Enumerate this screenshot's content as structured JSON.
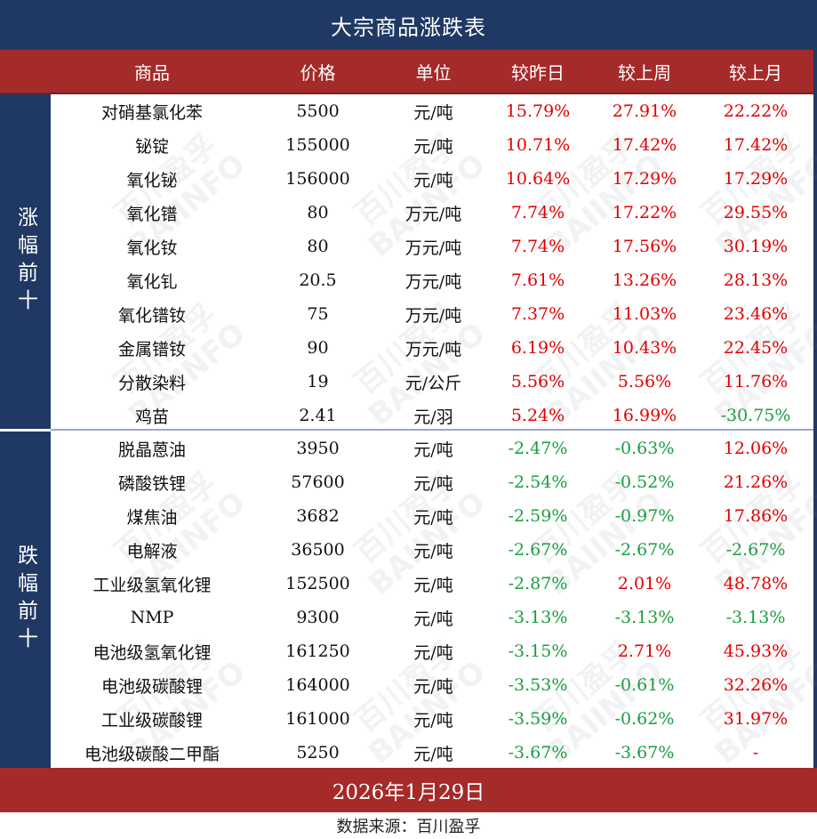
{
  "title": "大宗商品涨跌表",
  "headers": [
    "商品",
    "价格",
    "单位",
    "较昨日",
    "较上周",
    "较上月"
  ],
  "sections": [
    {
      "label": "涨幅前十",
      "rows": [
        {
          "name": "对硝基氯化苯",
          "price": "5500",
          "unit": "元/吨",
          "day": "15.79%",
          "week": "27.91%",
          "month": "22.22%",
          "day_dir": "up",
          "week_dir": "up",
          "month_dir": "up"
        },
        {
          "name": "铋锭",
          "price": "155000",
          "unit": "元/吨",
          "day": "10.71%",
          "week": "17.42%",
          "month": "17.42%",
          "day_dir": "up",
          "week_dir": "up",
          "month_dir": "up"
        },
        {
          "name": "氧化铋",
          "price": "156000",
          "unit": "元/吨",
          "day": "10.64%",
          "week": "17.29%",
          "month": "17.29%",
          "day_dir": "up",
          "week_dir": "up",
          "month_dir": "up"
        },
        {
          "name": "氧化镨",
          "price": "80",
          "unit": "万元/吨",
          "day": "7.74%",
          "week": "17.22%",
          "month": "29.55%",
          "day_dir": "up",
          "week_dir": "up",
          "month_dir": "up"
        },
        {
          "name": "氧化钕",
          "price": "80",
          "unit": "万元/吨",
          "day": "7.74%",
          "week": "17.56%",
          "month": "30.19%",
          "day_dir": "up",
          "week_dir": "up",
          "month_dir": "up"
        },
        {
          "name": "氧化钆",
          "price": "20.5",
          "unit": "万元/吨",
          "day": "7.61%",
          "week": "13.26%",
          "month": "28.13%",
          "day_dir": "up",
          "week_dir": "up",
          "month_dir": "up"
        },
        {
          "name": "氧化镨钕",
          "price": "75",
          "unit": "万元/吨",
          "day": "7.37%",
          "week": "11.03%",
          "month": "23.46%",
          "day_dir": "up",
          "week_dir": "up",
          "month_dir": "up"
        },
        {
          "name": "金属镨钕",
          "price": "90",
          "unit": "万元/吨",
          "day": "6.19%",
          "week": "10.43%",
          "month": "22.45%",
          "day_dir": "up",
          "week_dir": "up",
          "month_dir": "up"
        },
        {
          "name": "分散染料",
          "price": "19",
          "unit": "元/公斤",
          "day": "5.56%",
          "week": "5.56%",
          "month": "11.76%",
          "day_dir": "up",
          "week_dir": "up",
          "month_dir": "up"
        },
        {
          "name": "鸡苗",
          "price": "2.41",
          "unit": "元/羽",
          "day": "5.24%",
          "week": "16.99%",
          "month": "-30.75%",
          "day_dir": "up",
          "week_dir": "up",
          "month_dir": "down"
        }
      ]
    },
    {
      "label": "跌幅前十",
      "rows": [
        {
          "name": "脱晶蒽油",
          "price": "3950",
          "unit": "元/吨",
          "day": "-2.47%",
          "week": "-0.63%",
          "month": "12.06%",
          "day_dir": "down",
          "week_dir": "down",
          "month_dir": "up"
        },
        {
          "name": "磷酸铁锂",
          "price": "57600",
          "unit": "元/吨",
          "day": "-2.54%",
          "week": "-0.52%",
          "month": "21.26%",
          "day_dir": "down",
          "week_dir": "down",
          "month_dir": "up"
        },
        {
          "name": "煤焦油",
          "price": "3682",
          "unit": "元/吨",
          "day": "-2.59%",
          "week": "-0.97%",
          "month": "17.86%",
          "day_dir": "down",
          "week_dir": "down",
          "month_dir": "up"
        },
        {
          "name": "电解液",
          "price": "36500",
          "unit": "元/吨",
          "day": "-2.67%",
          "week": "-2.67%",
          "month": "-2.67%",
          "day_dir": "down",
          "week_dir": "down",
          "month_dir": "down"
        },
        {
          "name": "工业级氢氧化锂",
          "price": "152500",
          "unit": "元/吨",
          "day": "-2.87%",
          "week": "2.01%",
          "month": "48.78%",
          "day_dir": "down",
          "week_dir": "up",
          "month_dir": "up"
        },
        {
          "name": "NMP",
          "price": "9300",
          "unit": "元/吨",
          "day": "-3.13%",
          "week": "-3.13%",
          "month": "-3.13%",
          "day_dir": "down",
          "week_dir": "down",
          "month_dir": "down"
        },
        {
          "name": "电池级氢氧化锂",
          "price": "161250",
          "unit": "元/吨",
          "day": "-3.15%",
          "week": "2.71%",
          "month": "45.93%",
          "day_dir": "down",
          "week_dir": "up",
          "month_dir": "up"
        },
        {
          "name": "电池级碳酸锂",
          "price": "164000",
          "unit": "元/吨",
          "day": "-3.53%",
          "week": "-0.61%",
          "month": "32.26%",
          "day_dir": "down",
          "week_dir": "down",
          "month_dir": "up"
        },
        {
          "name": "工业级碳酸锂",
          "price": "161000",
          "unit": "元/吨",
          "day": "-3.59%",
          "week": "-0.62%",
          "month": "31.97%",
          "day_dir": "down",
          "week_dir": "down",
          "month_dir": "up"
        },
        {
          "name": "电池级碳酸二甲酯",
          "price": "5250",
          "unit": "元/吨",
          "day": "-3.67%",
          "week": "-3.67%",
          "month": "-",
          "day_dir": "down",
          "week_dir": "down",
          "month_dir": "up"
        }
      ]
    }
  ],
  "date": "2026年1月29日",
  "source": "数据来源：百川盈孚",
  "watermark": {
    "line1": "百川盈孚",
    "line2": "BAIINFO"
  },
  "colors": {
    "navy": "#1f3864",
    "red_band": "#a52a2a",
    "up": "#e00000",
    "down": "#1a9e3f"
  }
}
